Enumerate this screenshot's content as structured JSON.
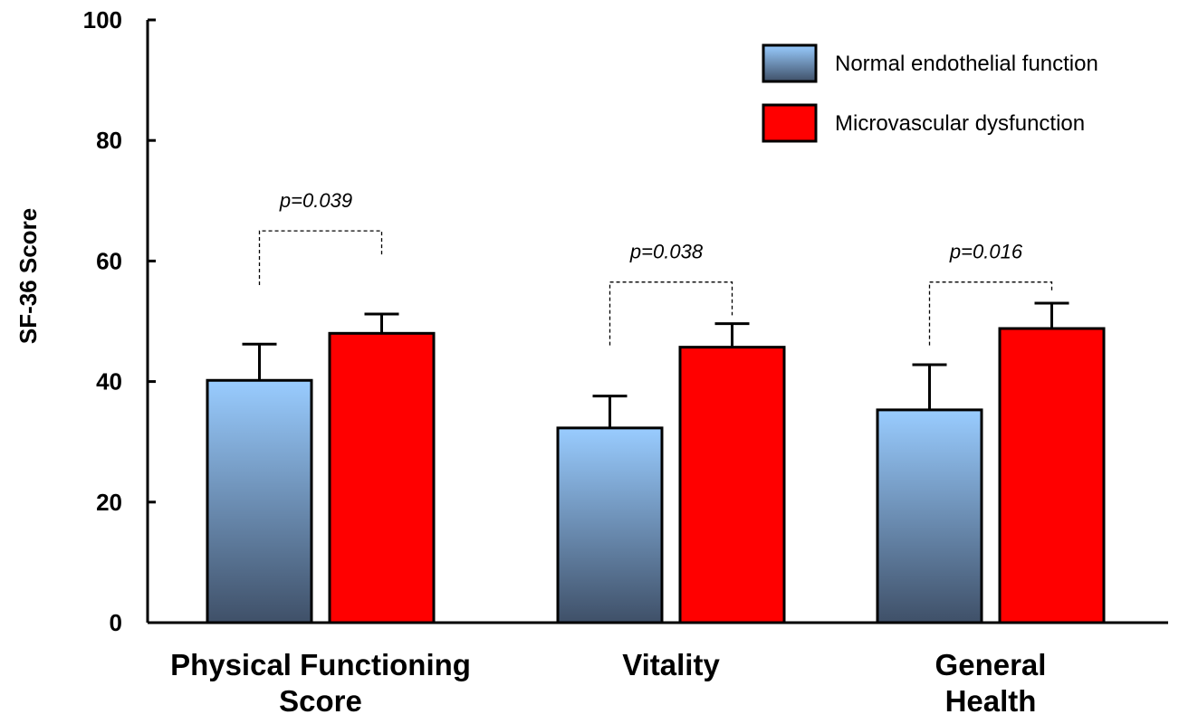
{
  "chart_data": {
    "type": "bar",
    "ylabel": "SF-36 Score",
    "ylim": [
      0,
      100
    ],
    "yticks": [
      "0",
      "20",
      "40",
      "60",
      "80",
      "100"
    ],
    "grid": false,
    "legend_position": "top-right",
    "categories": [
      {
        "lines": [
          "Physical Functioning",
          "Score"
        ]
      },
      {
        "lines": [
          "Vitality"
        ]
      },
      {
        "lines": [
          "General",
          "Health"
        ]
      }
    ],
    "series": [
      {
        "name": "Normal endothelial function",
        "values": [
          40.2,
          32.3,
          35.3
        ],
        "errors": [
          6.0,
          5.3,
          7.5
        ],
        "color_top": "#99ccff",
        "color_bottom": "#3f5068"
      },
      {
        "name": "Microvascular dysfunction",
        "values": [
          48.0,
          45.7,
          48.8
        ],
        "errors": [
          3.2,
          3.9,
          4.2
        ],
        "color": "#ff0000"
      }
    ],
    "annotations": [
      {
        "text": "p=0.039",
        "category": 0,
        "bracket_y": 65,
        "left_y": 56,
        "right_y": 61
      },
      {
        "text": "p=0.038",
        "category": 1,
        "bracket_y": 56.5,
        "left_y": 46,
        "right_y": 51
      },
      {
        "text": "p=0.016",
        "category": 2,
        "bracket_y": 56.5,
        "left_y": 46,
        "right_y": 55
      }
    ]
  }
}
